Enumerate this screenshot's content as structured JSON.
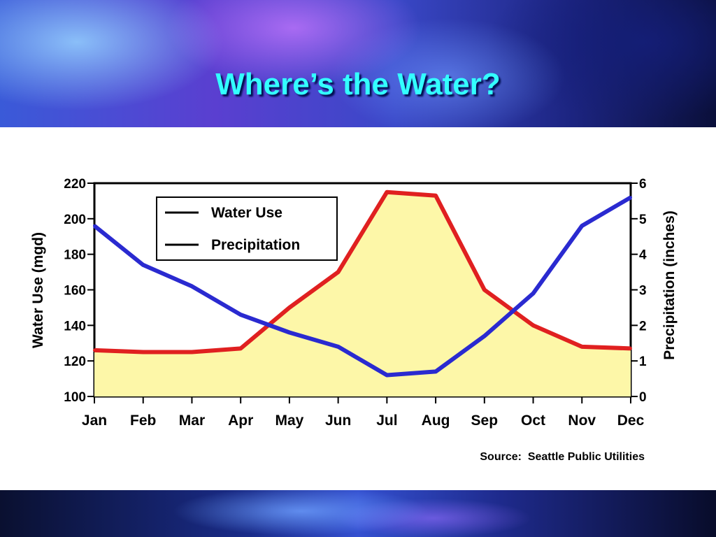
{
  "slide": {
    "title": "Where’s the Water?",
    "source": "Source:  Seattle Public Utilities"
  },
  "colors": {
    "title": "#33ffff",
    "water_use": "#e02020",
    "precipitation": "#2a2ad0",
    "fill": "#fdf7a8"
  },
  "chart_data": {
    "type": "line",
    "title": "",
    "categories": [
      "Jan",
      "Feb",
      "Mar",
      "Apr",
      "May",
      "Jun",
      "Jul",
      "Aug",
      "Sep",
      "Oct",
      "Nov",
      "Dec"
    ],
    "series": [
      {
        "name": "Water Use",
        "axis": "left",
        "fill": true,
        "values": [
          126,
          125,
          125,
          127,
          150,
          170,
          215,
          213,
          160,
          140,
          128,
          127
        ]
      },
      {
        "name": "Precipitation",
        "axis": "right",
        "values": [
          4.8,
          3.7,
          3.1,
          2.3,
          1.8,
          1.4,
          0.6,
          0.7,
          1.7,
          2.9,
          4.8,
          5.6
        ]
      }
    ],
    "ylabel": "Water Use (mgd)",
    "y2label": "Precipitation (inches)",
    "ylim": [
      100,
      220
    ],
    "y2lim": [
      0,
      6
    ],
    "yticks": [
      "100",
      "120",
      "140",
      "160",
      "180",
      "200",
      "220"
    ],
    "y2ticks": [
      "0",
      "1",
      "2",
      "3",
      "4",
      "5",
      "6"
    ],
    "legend": "top-left"
  }
}
